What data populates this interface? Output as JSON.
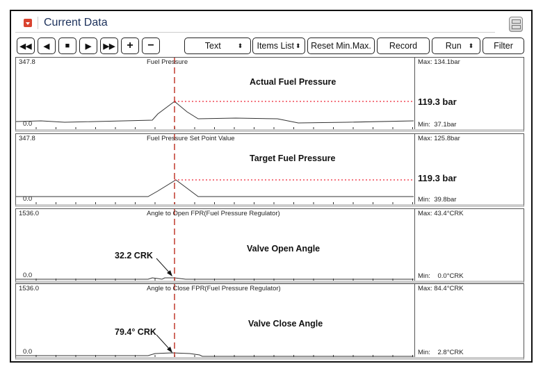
{
  "window": {
    "title": "Current Data",
    "app_icon": "menu-dropdown-icon",
    "layout_icon": "layout-toggle-icon"
  },
  "toolbar": {
    "nav_buttons": [
      {
        "name": "rewind",
        "glyph": "◀◀"
      },
      {
        "name": "step-back",
        "glyph": "◀"
      },
      {
        "name": "stop",
        "glyph": "■"
      },
      {
        "name": "step-forward",
        "glyph": "▶"
      },
      {
        "name": "fast-forward",
        "glyph": "▶▶"
      },
      {
        "name": "zoom-in",
        "glyph": "+"
      },
      {
        "name": "zoom-out",
        "glyph": "−"
      }
    ],
    "view_select": "Text",
    "items_list": "Items List",
    "reset": "Reset Min.Max.",
    "record": "Record",
    "run": "Run",
    "filter": "Filter",
    "spin_glyph": "⬍"
  },
  "cursor_color": "#c0392b",
  "panels": [
    {
      "top_value": "347.8",
      "bottom_value": "0.0",
      "name": "Fuel Pressure",
      "annotation": "Actual Fuel Pressure",
      "cursor_value": "119.3 bar",
      "max": "Max: 134.1bar",
      "min": "Min:  37.1bar"
    },
    {
      "top_value": "347.8",
      "bottom_value": "0.0",
      "name": "Fuel Pressure Set Point Value",
      "annotation": "Target Fuel Pressure",
      "cursor_value": "119.3 bar",
      "max": "Max: 125.8bar",
      "min": "Min:  39.8bar"
    },
    {
      "top_value": "1536.0",
      "bottom_value": "0.0",
      "name": "Angle to Open FPR(Fuel Pressure Regulator)",
      "annotation": "Valve Open Angle",
      "callout": "32.2  CRK",
      "max": "Max:  43.4°CRK",
      "min": "Min:    0.0°CRK"
    },
    {
      "top_value": "1536.0",
      "bottom_value": "0.0",
      "name": "Angle to Close FPR(Fuel Pressure Regulator)",
      "annotation": "Valve Close Angle",
      "callout": "79.4° CRK",
      "max": "Max:  84.4°CRK",
      "min": "Min:    2.8°CRK"
    }
  ]
}
